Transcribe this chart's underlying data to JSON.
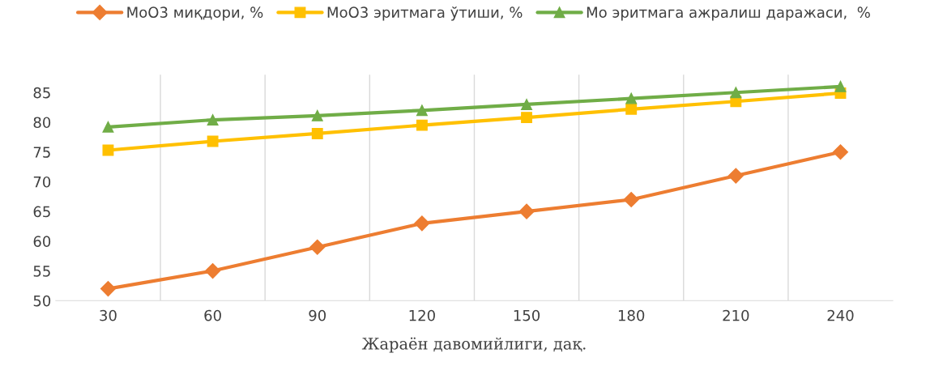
{
  "chart_data": {
    "type": "line",
    "xlabel": "Жараён давомийлиги, дақ.",
    "categories": [
      "30",
      "60",
      "90",
      "120",
      "150",
      "180",
      "210",
      "240"
    ],
    "series": [
      {
        "name": "МоО3 миқдори, %",
        "color": "#ed7d31",
        "marker": "diamond",
        "values": [
          52,
          55,
          59,
          63,
          65,
          67,
          71,
          75
        ]
      },
      {
        "name": "МоО3 эритмага ўтиши, %",
        "color": "#ffc000",
        "marker": "square",
        "values": [
          75.3,
          76.8,
          78.1,
          79.5,
          80.8,
          82.2,
          83.5,
          84.9
        ]
      },
      {
        "name": "Мо эритмага ажралиш даражаси,  %",
        "color": "#70ad47",
        "marker": "triangle",
        "values": [
          79.2,
          80.4,
          81.1,
          82.0,
          83.0,
          84.0,
          85.0,
          86.0
        ]
      }
    ],
    "ylim": [
      50,
      88
    ],
    "yticks": [
      50,
      55,
      60,
      65,
      70,
      75,
      80,
      85
    ],
    "grid": "x",
    "legend": "top",
    "line_style": "solid"
  }
}
